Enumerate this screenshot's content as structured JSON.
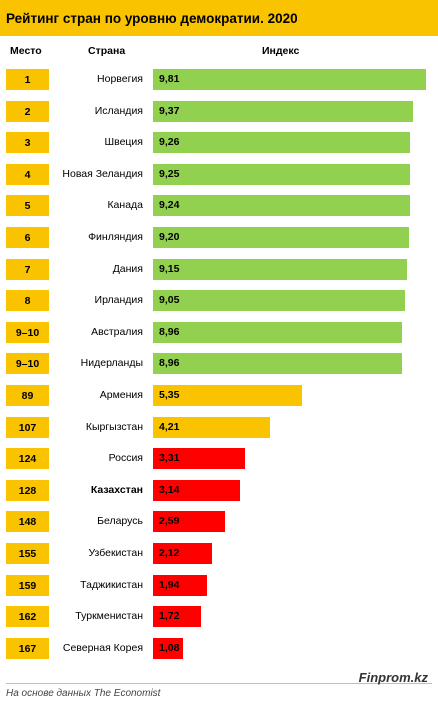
{
  "header": {
    "title": "Рейтинг стран по уровню демократии. 2020",
    "col_rank": "Место",
    "col_country": "Страна",
    "col_index": "Индекс"
  },
  "colors": {
    "accent": "#f9c300",
    "high": "#92d050",
    "mid": "#f9c300",
    "low": "#ff0000"
  },
  "chart_data": {
    "type": "bar",
    "title": "Рейтинг стран по уровню демократии. 2020",
    "orientation": "horizontal",
    "xlim": [
      0,
      10
    ],
    "categories": [
      "Норвегия",
      "Исландия",
      "Швеция",
      "Новая Зеландия",
      "Канада",
      "Финляндия",
      "Дания",
      "Ирландия",
      "Австралия",
      "Нидерланды",
      "Армения",
      "Кыргызстан",
      "Россия",
      "Казахстан",
      "Беларусь",
      "Узбекистан",
      "Таджикистан",
      "Туркменистан",
      "Северная Корея"
    ],
    "ranks": [
      "1",
      "2",
      "3",
      "4",
      "5",
      "6",
      "7",
      "8",
      "9–10",
      "9–10",
      "89",
      "107",
      "124",
      "128",
      "148",
      "155",
      "159",
      "162",
      "167"
    ],
    "values": [
      9.81,
      9.37,
      9.26,
      9.25,
      9.24,
      9.2,
      9.15,
      9.05,
      8.96,
      8.96,
      5.35,
      4.21,
      3.31,
      3.14,
      2.59,
      2.12,
      1.94,
      1.72,
      1.08
    ],
    "value_labels": [
      "9,81",
      "9,37",
      "9,26",
      "9,25",
      "9,24",
      "9,20",
      "9,15",
      "9,05",
      "8,96",
      "8,96",
      "5,35",
      "4,21",
      "3,31",
      "3,14",
      "2,59",
      "2,12",
      "1,94",
      "1,72",
      "1,08"
    ],
    "bar_colors": [
      "#92d050",
      "#92d050",
      "#92d050",
      "#92d050",
      "#92d050",
      "#92d050",
      "#92d050",
      "#92d050",
      "#92d050",
      "#92d050",
      "#f9c300",
      "#f9c300",
      "#ff0000",
      "#ff0000",
      "#ff0000",
      "#ff0000",
      "#ff0000",
      "#ff0000",
      "#ff0000"
    ],
    "highlighted": [
      "Казахстан"
    ]
  },
  "footer": {
    "source": "На основе данных The Economist",
    "brand": "Finprom.kz"
  }
}
